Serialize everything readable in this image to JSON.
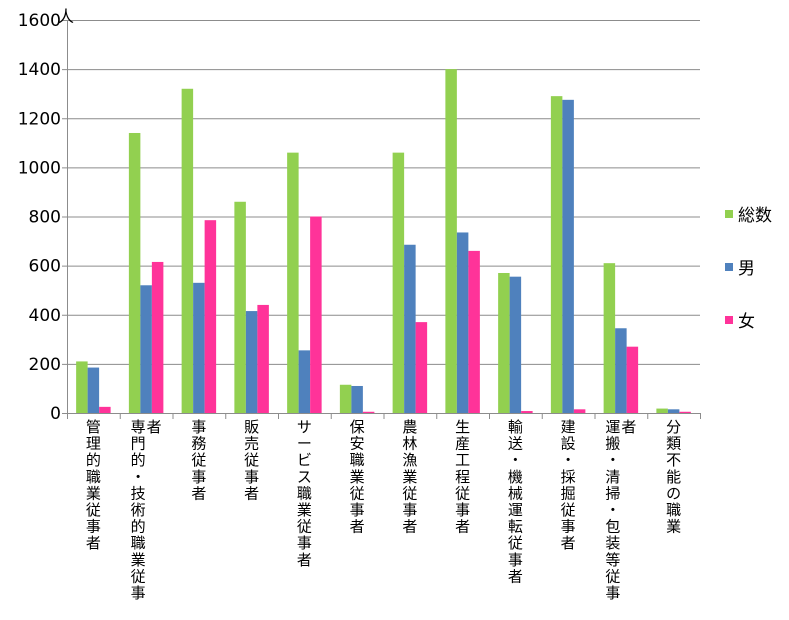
{
  "chart_data": {
    "type": "bar",
    "unit_label": "人",
    "categories": [
      "管理的職業従事者",
      "専門的・技術的職業従事者",
      "事務従事者",
      "販売従事者",
      "サービス職業従事者",
      "保安職業従事者",
      "農林漁業従事者",
      "生産工程従事者",
      "輸送・機械運転従事者",
      "建設・採掘従事者",
      "運搬・清掃・包装等従事者",
      "分類不能の職業"
    ],
    "series": [
      {
        "name": "総数",
        "color": "#92d050",
        "values": [
          210,
          1140,
          1320,
          860,
          1060,
          115,
          1060,
          1400,
          570,
          1290,
          610,
          18
        ]
      },
      {
        "name": "男",
        "color": "#4f81bd",
        "values": [
          185,
          520,
          530,
          415,
          255,
          110,
          685,
          735,
          555,
          1275,
          345,
          15
        ]
      },
      {
        "name": "女",
        "color": "#ff3399",
        "values": [
          25,
          615,
          785,
          440,
          800,
          5,
          370,
          660,
          8,
          15,
          270,
          5
        ]
      }
    ],
    "ylim": [
      0,
      1600
    ],
    "yticks": [
      0,
      200,
      400,
      600,
      800,
      1000,
      1200,
      1400,
      1600
    ],
    "grid": true,
    "legend_position": "right"
  }
}
